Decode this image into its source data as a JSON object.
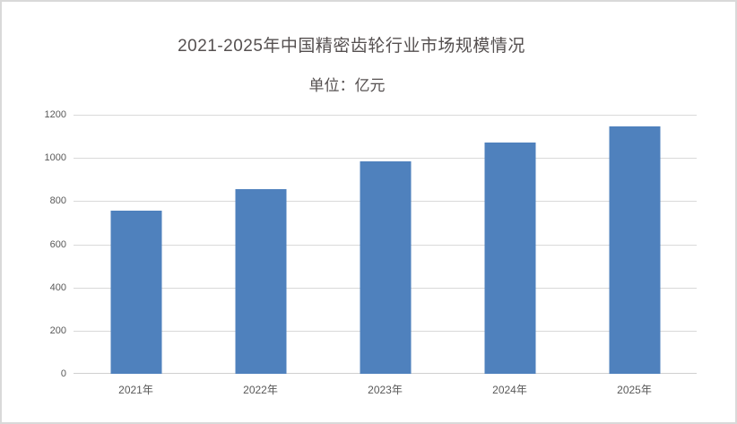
{
  "window": {
    "background_color": "#ffffff",
    "border_color": "#d9d9d9"
  },
  "chart": {
    "title": "2021-2025年中国精密齿轮行业市场规模情况",
    "subtitle": "单位：亿元"
  },
  "chart_data": {
    "type": "bar",
    "title": "2021-2025年中国精密齿轮行业市场规模情况",
    "subtitle": "单位：亿元",
    "unit": "亿元",
    "categories": [
      "2021年",
      "2022年",
      "2023年",
      "2024年",
      "2025年"
    ],
    "values": [
      755,
      855,
      985,
      1070,
      1145
    ],
    "xlabel": "",
    "ylabel": "",
    "ylim": [
      0,
      1200
    ],
    "yticks": [
      0,
      200,
      400,
      600,
      800,
      1000,
      1200
    ],
    "grid": true,
    "legend": false,
    "bar_color": "#4F81BD",
    "gridline_color": "#D9D9D9",
    "axis_text_color": "#595959",
    "title_color": "#555050"
  }
}
